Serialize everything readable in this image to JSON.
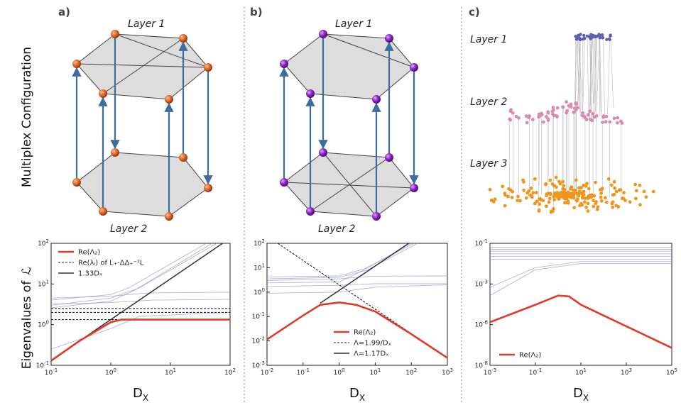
{
  "row_labels": {
    "top": "Multiplex Configuration",
    "bottom": "Eigenvalues of",
    "bottom_symbol": "ℒ"
  },
  "panels": {
    "a": {
      "letter": "a)",
      "layer_top": "Layer 1",
      "layer_bottom": "Layer 2",
      "node_color": "#e0662a",
      "plane_color": "#d7d7d7"
    },
    "b": {
      "letter": "b)",
      "layer_top": "Layer 1",
      "layer_bottom": "Layer 2",
      "node_color": "#8a22c8",
      "plane_color": "#d7d7d7"
    },
    "c": {
      "letter": "c)",
      "layers": [
        "Layer 1",
        "Layer 2",
        "Layer 3"
      ],
      "layer_colors": [
        "#5b5fae",
        "#d98bb0",
        "#f0961e"
      ]
    }
  },
  "chart_data": [
    {
      "type": "line",
      "panel": "a",
      "xlabel": "D_X",
      "ylabel": "Eigenvalues of ℒ",
      "xscale": "log",
      "yscale": "log",
      "xlim": [
        0.1,
        100
      ],
      "ylim": [
        0.1,
        100
      ],
      "x_tick_labels": [
        "10^-1",
        "10^0",
        "10^1",
        "10^2"
      ],
      "y_tick_labels": [
        "10^-1",
        "10^0",
        "10^1",
        "10^2"
      ],
      "legend": [
        "Re(Λ₂)",
        "Re(λᵢ) of L₊-ΔΔ₊⁻¹L",
        "1.33Dₓ"
      ],
      "legend_position": "top-left",
      "series": [
        {
          "name": "Re(Λ₂)",
          "style": "red",
          "x": [
            0.1,
            0.3,
            1.0,
            1.5,
            100
          ],
          "y": [
            0.13,
            0.4,
            1.15,
            1.33,
            1.33
          ]
        },
        {
          "name": "Re(λᵢ) of L₊-ΔΔ₊⁻¹L",
          "style": "dashed",
          "x": [
            0.1,
            100
          ],
          "y": [
            1.33,
            1.33
          ]
        },
        {
          "name": "Re(λᵢ) of L₊-ΔΔ₊⁻¹L",
          "style": "dashed",
          "x": [
            0.1,
            100
          ],
          "y": [
            2.0,
            2.0
          ]
        },
        {
          "name": "Re(λᵢ) of L₊-ΔΔ₊⁻¹L",
          "style": "dashed",
          "x": [
            0.1,
            100
          ],
          "y": [
            2.5,
            2.5
          ]
        },
        {
          "name": "1.33Dₓ",
          "style": "black",
          "x": [
            0.1,
            75
          ],
          "y": [
            0.133,
            100
          ]
        },
        {
          "style": "faint",
          "x": [
            0.1,
            1,
            3,
            100
          ],
          "y": [
            0.25,
            0.8,
            1.6,
            2.0
          ]
        },
        {
          "style": "faint",
          "x": [
            0.1,
            1,
            5,
            100
          ],
          "y": [
            3.2,
            3.5,
            4.0,
            4.2
          ]
        },
        {
          "style": "faint",
          "x": [
            0.1,
            1,
            4,
            100
          ],
          "y": [
            4.5,
            5.0,
            6.0,
            6.3
          ]
        },
        {
          "style": "faint",
          "x": [
            0.1,
            1,
            3,
            60
          ],
          "y": [
            3.0,
            4.5,
            8,
            100
          ]
        },
        {
          "style": "faint",
          "x": [
            0.1,
            1,
            2.5,
            50
          ],
          "y": [
            2.6,
            3.8,
            7,
            100
          ]
        },
        {
          "style": "faint",
          "x": [
            0.1,
            1,
            2,
            40
          ],
          "y": [
            4.0,
            5.5,
            8,
            100
          ]
        }
      ]
    },
    {
      "type": "line",
      "panel": "b",
      "xlabel": "D_X",
      "xscale": "log",
      "yscale": "log",
      "xlim": [
        0.01,
        1000
      ],
      "ylim": [
        0.001,
        100
      ],
      "x_tick_labels": [
        "10^-2",
        "10^-1",
        "10^0",
        "10^1",
        "10^2",
        "10^3"
      ],
      "y_tick_labels": [
        "10^-3",
        "10^-2",
        "10^-1",
        "10^0",
        "10^1",
        "10^2"
      ],
      "legend": [
        "Re(Λ₂)",
        "Λ=1.99/Dₓ",
        "Λ=1.17Dₓ"
      ],
      "legend_position": "bottom-center",
      "series": [
        {
          "name": "Re(Λ₂)",
          "style": "red",
          "x": [
            0.01,
            0.1,
            0.3,
            1,
            3,
            10,
            100,
            1000
          ],
          "y": [
            0.0115,
            0.11,
            0.3,
            0.38,
            0.3,
            0.16,
            0.019,
            0.002
          ]
        },
        {
          "name": "Λ=1.99/Dₓ",
          "style": "dashed",
          "x": [
            0.02,
            100
          ],
          "y": [
            99.5,
            0.0199
          ]
        },
        {
          "name": "Λ=1.17Dₓ",
          "style": "black",
          "x": [
            0.3,
            85
          ],
          "y": [
            0.351,
            100
          ]
        },
        {
          "style": "faint",
          "x": [
            0.01,
            1,
            10,
            1000
          ],
          "y": [
            0.9,
            1.0,
            1.6,
            2.0
          ]
        },
        {
          "style": "faint",
          "x": [
            0.01,
            1,
            10,
            1000
          ],
          "y": [
            1.7,
            1.9,
            2.2,
            2.2
          ]
        },
        {
          "style": "faint",
          "x": [
            0.01,
            1,
            8,
            1000
          ],
          "y": [
            3.0,
            3.5,
            4.5,
            4.6
          ]
        },
        {
          "style": "faint",
          "x": [
            0.01,
            1,
            6,
            150
          ],
          "y": [
            3.5,
            4.0,
            8,
            100
          ]
        },
        {
          "style": "faint",
          "x": [
            0.01,
            1,
            5,
            120
          ],
          "y": [
            4.2,
            4.6,
            9,
            100
          ]
        },
        {
          "style": "faint",
          "x": [
            0.01,
            1,
            4,
            100
          ],
          "y": [
            2.4,
            2.6,
            7,
            100
          ]
        }
      ]
    },
    {
      "type": "line",
      "panel": "c",
      "xlabel": "D_X",
      "xscale": "log",
      "yscale": "log",
      "xlim": [
        0.001,
        100000
      ],
      "ylim": [
        1e-08,
        0.1
      ],
      "x_tick_labels": [
        "10^-3",
        "10^-1",
        "10^1",
        "10^3",
        "10^5"
      ],
      "y_tick_labels": [
        "10^-8",
        "10^-6",
        "10^-3",
        "10^-1"
      ],
      "legend": [
        "Re(Λ₂)"
      ],
      "legend_position": "bottom-left",
      "series": [
        {
          "name": "Re(Λ₂)",
          "style": "red",
          "x": [
            0.001,
            0.1,
            1,
            3,
            10,
            100000
          ],
          "y": [
            3e-06,
            3e-05,
            0.0001,
            9e-05,
            3e-05,
            1e-07
          ]
        },
        {
          "style": "faint",
          "x": [
            0.001,
            100000
          ],
          "y": [
            0.06,
            0.06
          ]
        },
        {
          "style": "faint",
          "x": [
            0.001,
            100000
          ],
          "y": [
            0.045,
            0.045
          ]
        },
        {
          "style": "faint",
          "x": [
            0.001,
            100000
          ],
          "y": [
            0.035,
            0.035
          ]
        },
        {
          "style": "faint",
          "x": [
            0.001,
            100000
          ],
          "y": [
            0.025,
            0.025
          ]
        },
        {
          "style": "faint",
          "x": [
            0.001,
            100000
          ],
          "y": [
            0.018,
            0.018
          ]
        },
        {
          "style": "faint",
          "x": [
            0.001,
            100000
          ],
          "y": [
            0.012,
            0.012
          ]
        },
        {
          "style": "faint",
          "x": [
            0.001,
            0.1,
            10,
            100000
          ],
          "y": [
            0.0001,
            0.003,
            0.007,
            0.007
          ]
        },
        {
          "style": "faint",
          "x": [
            0.001,
            0.1,
            10,
            100000
          ],
          "y": [
            0.0003,
            0.004,
            0.009,
            0.009
          ]
        }
      ]
    }
  ]
}
